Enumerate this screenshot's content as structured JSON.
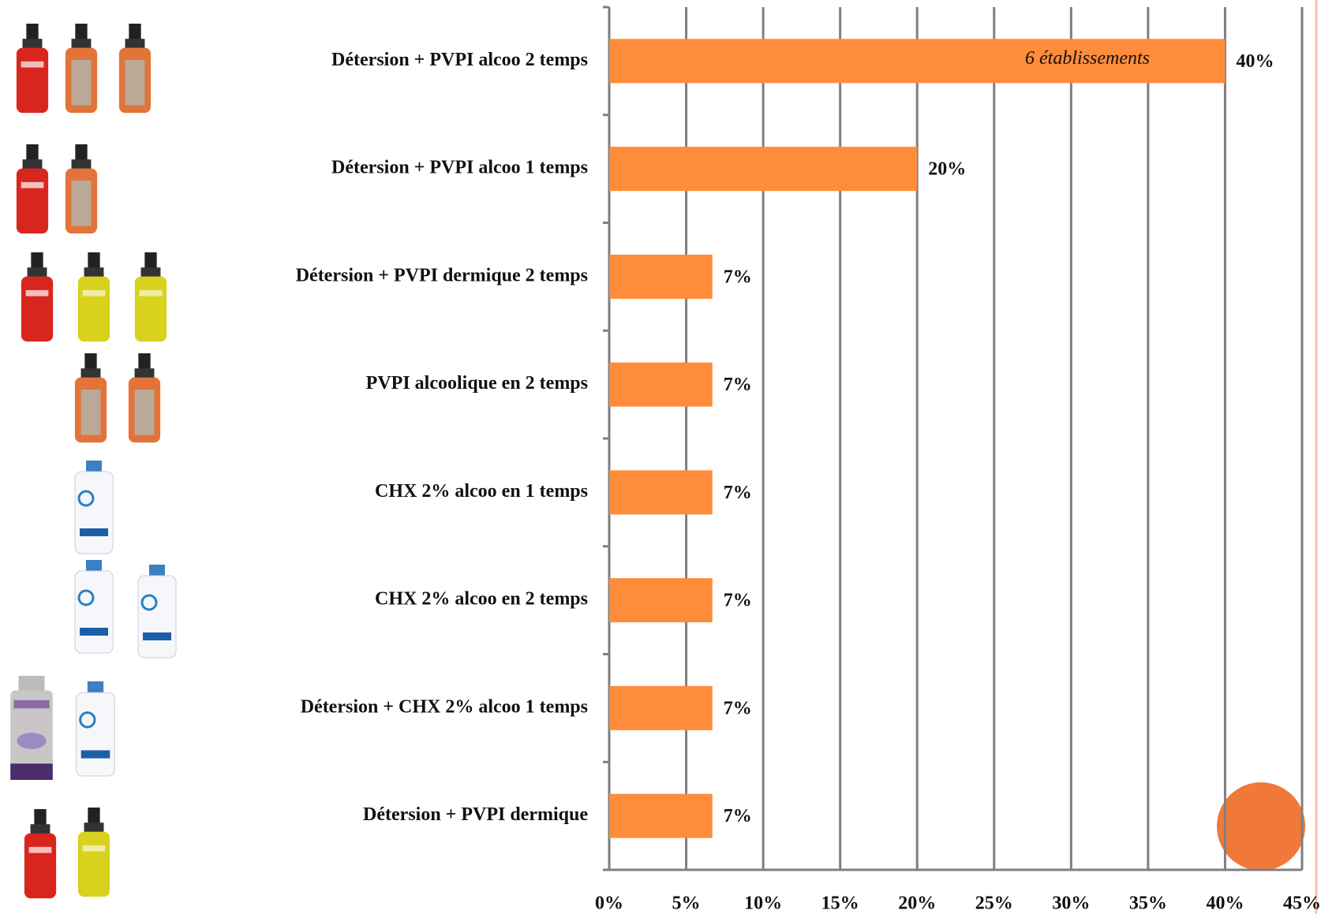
{
  "chart_data": {
    "type": "barh",
    "categories": [
      "Détersion + PVPI alcoo 2 temps",
      "Détersion + PVPI alcoo 1 temps",
      "Détersion + PVPI dermique 2 temps",
      "PVPI alcoolique en 2 temps",
      "CHX 2% alcoo en 1 temps",
      "CHX 2% alcoo en 2 temps",
      "Détersion + CHX 2% alcoo 1 temps",
      "Détersion + PVPI dermique"
    ],
    "values": [
      40,
      20,
      6.7,
      6.7,
      6.7,
      6.7,
      6.7,
      6.7
    ],
    "value_labels": [
      "40%",
      "20%",
      "7%",
      "7%",
      "7%",
      "7%",
      "7%",
      "7%"
    ],
    "color": "#ff8c3a",
    "xlim": [
      0,
      45
    ],
    "xticks": [
      {
        "value": 0,
        "label": "0%"
      },
      {
        "value": 5,
        "label": "5%"
      },
      {
        "value": 10,
        "label": "10%"
      },
      {
        "value": 15,
        "label": "15%"
      },
      {
        "value": 20,
        "label": "20%"
      },
      {
        "value": 25,
        "label": "25%"
      },
      {
        "value": 30,
        "label": "30%"
      },
      {
        "value": 35,
        "label": "35%"
      },
      {
        "value": 40,
        "label": "40%"
      },
      {
        "value": 45,
        "label": "45%"
      }
    ],
    "grid": true,
    "annotations": [
      "6 établissements"
    ]
  }
}
